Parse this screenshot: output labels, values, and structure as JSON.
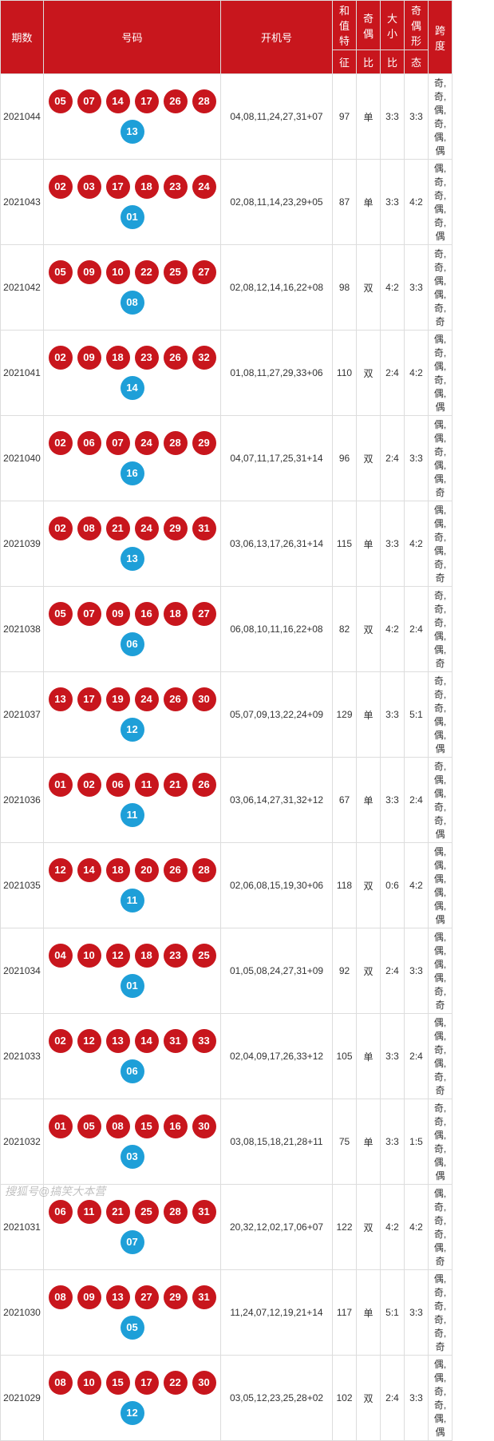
{
  "headers": {
    "period": "期数",
    "numbers": "号码",
    "open": "开机号",
    "sum_top": "和值特",
    "sum_sub": "征",
    "oe_top": "奇偶",
    "oe_sub": "比",
    "bs_top": "大小",
    "bs_sub": "比",
    "pattern_top": "奇偶形",
    "pattern_sub": "态",
    "span": "跨度"
  },
  "ball_colors": {
    "red": "#c8161d",
    "blue": "#1e9fd8"
  },
  "rows": [
    {
      "period": "2021044",
      "reds": [
        "05",
        "07",
        "14",
        "17",
        "26",
        "28"
      ],
      "blue": "13",
      "open": "04,08,11,24,27,31+07",
      "sum": "97",
      "oe": "单",
      "oe_ratio": "3:3",
      "bs_ratio": "3:3",
      "pattern": "奇,奇,偶,奇,偶,偶"
    },
    {
      "period": "2021043",
      "reds": [
        "02",
        "03",
        "17",
        "18",
        "23",
        "24"
      ],
      "blue": "01",
      "open": "02,08,11,14,23,29+05",
      "sum": "87",
      "oe": "单",
      "oe_ratio": "3:3",
      "bs_ratio": "4:2",
      "pattern": "偶,奇,奇,偶,奇,偶"
    },
    {
      "period": "2021042",
      "reds": [
        "05",
        "09",
        "10",
        "22",
        "25",
        "27"
      ],
      "blue": "08",
      "open": "02,08,12,14,16,22+08",
      "sum": "98",
      "oe": "双",
      "oe_ratio": "4:2",
      "bs_ratio": "3:3",
      "pattern": "奇,奇,偶,偶,奇,奇"
    },
    {
      "period": "2021041",
      "reds": [
        "02",
        "09",
        "18",
        "23",
        "26",
        "32"
      ],
      "blue": "14",
      "open": "01,08,11,27,29,33+06",
      "sum": "110",
      "oe": "双",
      "oe_ratio": "2:4",
      "bs_ratio": "4:2",
      "pattern": "偶,奇,偶,奇,偶,偶"
    },
    {
      "period": "2021040",
      "reds": [
        "02",
        "06",
        "07",
        "24",
        "28",
        "29"
      ],
      "blue": "16",
      "open": "04,07,11,17,25,31+14",
      "sum": "96",
      "oe": "双",
      "oe_ratio": "2:4",
      "bs_ratio": "3:3",
      "pattern": "偶,偶,奇,偶,偶,奇"
    },
    {
      "period": "2021039",
      "reds": [
        "02",
        "08",
        "21",
        "24",
        "29",
        "31"
      ],
      "blue": "13",
      "open": "03,06,13,17,26,31+14",
      "sum": "115",
      "oe": "单",
      "oe_ratio": "3:3",
      "bs_ratio": "4:2",
      "pattern": "偶,偶,奇,偶,奇,奇"
    },
    {
      "period": "2021038",
      "reds": [
        "05",
        "07",
        "09",
        "16",
        "18",
        "27"
      ],
      "blue": "06",
      "open": "06,08,10,11,16,22+08",
      "sum": "82",
      "oe": "双",
      "oe_ratio": "4:2",
      "bs_ratio": "2:4",
      "pattern": "奇,奇,奇,偶,偶,奇"
    },
    {
      "period": "2021037",
      "reds": [
        "13",
        "17",
        "19",
        "24",
        "26",
        "30"
      ],
      "blue": "12",
      "open": "05,07,09,13,22,24+09",
      "sum": "129",
      "oe": "单",
      "oe_ratio": "3:3",
      "bs_ratio": "5:1",
      "pattern": "奇,奇,奇,偶,偶,偶"
    },
    {
      "period": "2021036",
      "reds": [
        "01",
        "02",
        "06",
        "11",
        "21",
        "26"
      ],
      "blue": "11",
      "open": "03,06,14,27,31,32+12",
      "sum": "67",
      "oe": "单",
      "oe_ratio": "3:3",
      "bs_ratio": "2:4",
      "pattern": "奇,偶,偶,奇,奇,偶"
    },
    {
      "period": "2021035",
      "reds": [
        "12",
        "14",
        "18",
        "20",
        "26",
        "28"
      ],
      "blue": "11",
      "open": "02,06,08,15,19,30+06",
      "sum": "118",
      "oe": "双",
      "oe_ratio": "0:6",
      "bs_ratio": "4:2",
      "pattern": "偶,偶,偶,偶,偶,偶"
    },
    {
      "period": "2021034",
      "reds": [
        "04",
        "10",
        "12",
        "18",
        "23",
        "25"
      ],
      "blue": "01",
      "open": "01,05,08,24,27,31+09",
      "sum": "92",
      "oe": "双",
      "oe_ratio": "2:4",
      "bs_ratio": "3:3",
      "pattern": "偶,偶,偶,偶,奇,奇"
    },
    {
      "period": "2021033",
      "reds": [
        "02",
        "12",
        "13",
        "14",
        "31",
        "33"
      ],
      "blue": "06",
      "open": "02,04,09,17,26,33+12",
      "sum": "105",
      "oe": "单",
      "oe_ratio": "3:3",
      "bs_ratio": "2:4",
      "pattern": "偶,偶,奇,偶,奇,奇"
    },
    {
      "period": "2021032",
      "reds": [
        "01",
        "05",
        "08",
        "15",
        "16",
        "30"
      ],
      "blue": "03",
      "open": "03,08,15,18,21,28+11",
      "sum": "75",
      "oe": "单",
      "oe_ratio": "3:3",
      "bs_ratio": "1:5",
      "pattern": "奇,奇,偶,奇,偶,偶"
    },
    {
      "period": "2021031",
      "reds": [
        "06",
        "11",
        "21",
        "25",
        "28",
        "31"
      ],
      "blue": "07",
      "open": "20,32,12,02,17,06+07",
      "sum": "122",
      "oe": "双",
      "oe_ratio": "4:2",
      "bs_ratio": "4:2",
      "pattern": "偶,奇,奇,奇,偶,奇"
    },
    {
      "period": "2021030",
      "reds": [
        "08",
        "09",
        "13",
        "27",
        "29",
        "31"
      ],
      "blue": "05",
      "open": "11,24,07,12,19,21+14",
      "sum": "117",
      "oe": "单",
      "oe_ratio": "5:1",
      "bs_ratio": "3:3",
      "pattern": "偶,奇,奇,奇,奇,奇"
    },
    {
      "period": "2021029",
      "reds": [
        "08",
        "10",
        "15",
        "17",
        "22",
        "30"
      ],
      "blue": "12",
      "open": "03,05,12,23,25,28+02",
      "sum": "102",
      "oe": "双",
      "oe_ratio": "2:4",
      "bs_ratio": "3:3",
      "pattern": "偶,偶,奇,奇,偶,偶"
    }
  ],
  "watermark": "搜狐号@搞笑大本营"
}
